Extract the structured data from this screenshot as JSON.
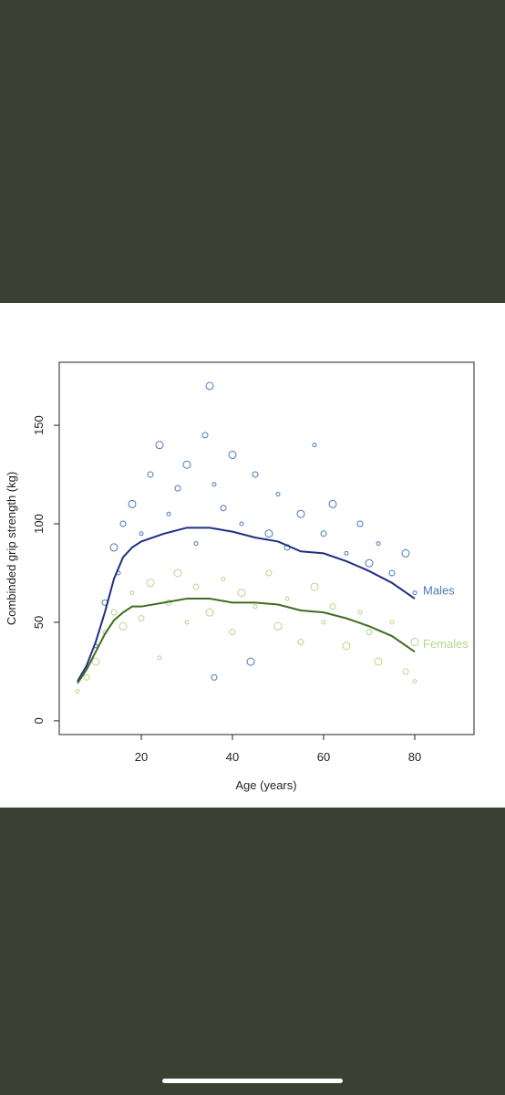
{
  "chart_data": {
    "type": "scatter",
    "xlabel": "Age (years)",
    "ylabel": "Combinded grip strength (kg)",
    "xlim": [
      2,
      93
    ],
    "ylim": [
      -7,
      182
    ],
    "xticks": [
      20,
      40,
      60,
      80
    ],
    "yticks": [
      0,
      50,
      100,
      150
    ],
    "series": [
      {
        "name": "Males",
        "color": "#1f2f80",
        "point_color": "#4a7ab8",
        "x": [
          6,
          8,
          10,
          12,
          14,
          16,
          18,
          20,
          25,
          30,
          35,
          40,
          45,
          50,
          55,
          60,
          65,
          70,
          75,
          80
        ],
        "values": [
          20,
          28,
          40,
          55,
          72,
          83,
          88,
          91,
          95,
          98,
          98,
          96,
          93,
          91,
          86,
          85,
          81,
          76,
          70,
          62
        ],
        "scatter_x": [
          10,
          12,
          14,
          15,
          16,
          18,
          20,
          22,
          24,
          26,
          28,
          30,
          32,
          34,
          35,
          36,
          38,
          40,
          42,
          45,
          48,
          50,
          52,
          55,
          58,
          60,
          62,
          65,
          68,
          70,
          72,
          75,
          78,
          80,
          36,
          44
        ],
        "scatter_y": [
          38,
          60,
          88,
          75,
          100,
          110,
          95,
          125,
          140,
          105,
          118,
          130,
          90,
          145,
          170,
          120,
          108,
          135,
          100,
          125,
          95,
          115,
          88,
          105,
          140,
          95,
          110,
          85,
          100,
          80,
          90,
          75,
          85,
          65,
          22,
          30
        ]
      },
      {
        "name": "Females",
        "color": "#3d6e1f",
        "point_color": "#b5d58a",
        "x": [
          6,
          8,
          10,
          12,
          14,
          16,
          18,
          20,
          25,
          30,
          35,
          40,
          45,
          50,
          55,
          60,
          65,
          70,
          75,
          80
        ],
        "values": [
          19,
          26,
          35,
          44,
          51,
          55,
          58,
          58,
          60,
          62,
          62,
          60,
          60,
          59,
          56,
          55,
          52,
          48,
          43,
          35
        ],
        "scatter_x": [
          6,
          8,
          10,
          12,
          14,
          16,
          18,
          20,
          22,
          24,
          26,
          28,
          30,
          32,
          35,
          38,
          40,
          42,
          45,
          48,
          50,
          52,
          55,
          58,
          60,
          62,
          65,
          68,
          70,
          72,
          75,
          78,
          80,
          80
        ],
        "scatter_y": [
          15,
          22,
          30,
          45,
          55,
          48,
          65,
          52,
          70,
          32,
          60,
          75,
          50,
          68,
          55,
          72,
          45,
          65,
          58,
          75,
          48,
          62,
          40,
          68,
          50,
          58,
          38,
          55,
          45,
          30,
          50,
          25,
          40,
          20
        ]
      }
    ]
  }
}
